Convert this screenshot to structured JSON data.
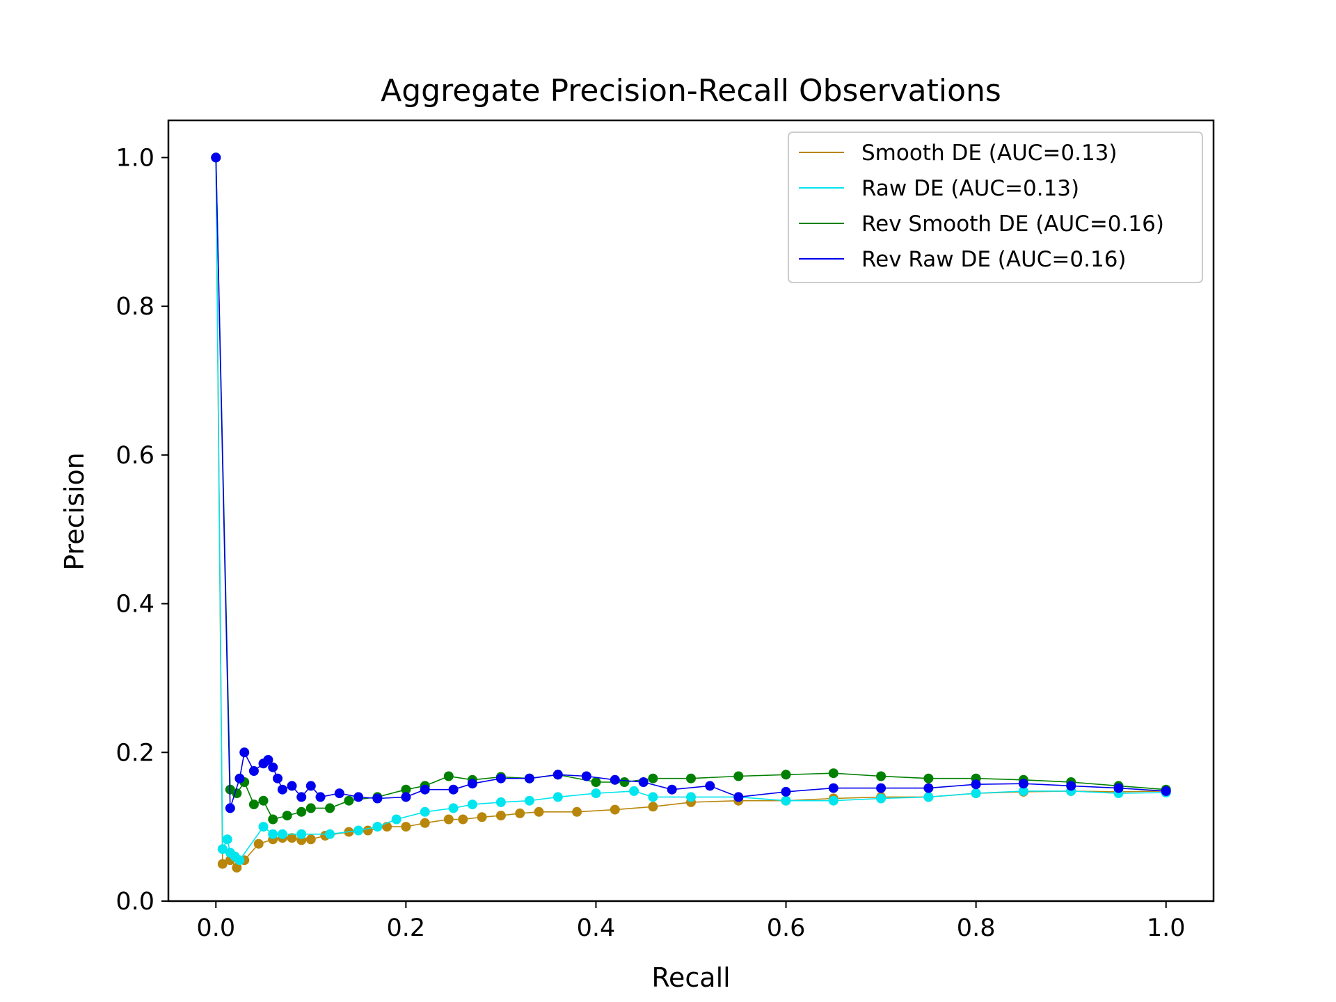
{
  "chart_data": {
    "type": "line",
    "title": "Aggregate Precision-Recall Observations",
    "xlabel": "Recall",
    "ylabel": "Precision",
    "xlim": [
      -0.05,
      1.05
    ],
    "ylim": [
      0.0,
      1.05
    ],
    "xticks": [
      0.0,
      0.2,
      0.4,
      0.6,
      0.8,
      1.0
    ],
    "yticks": [
      0.0,
      0.2,
      0.4,
      0.6,
      0.8,
      1.0
    ],
    "xtick_labels": [
      "0.0",
      "0.2",
      "0.4",
      "0.6",
      "0.8",
      "1.0"
    ],
    "ytick_labels": [
      "0.0",
      "0.2",
      "0.4",
      "0.6",
      "0.8",
      "1.0"
    ],
    "grid": false,
    "legend_position": "top-right",
    "series": [
      {
        "name": "Smooth DE (AUC=0.13)",
        "color": "#b8860b",
        "points": [
          [
            0.0,
            1.0
          ],
          [
            0.007,
            0.05
          ],
          [
            0.015,
            0.055
          ],
          [
            0.022,
            0.045
          ],
          [
            0.03,
            0.055
          ],
          [
            0.045,
            0.077
          ],
          [
            0.06,
            0.083
          ],
          [
            0.07,
            0.085
          ],
          [
            0.08,
            0.085
          ],
          [
            0.09,
            0.082
          ],
          [
            0.1,
            0.083
          ],
          [
            0.115,
            0.088
          ],
          [
            0.14,
            0.093
          ],
          [
            0.16,
            0.095
          ],
          [
            0.18,
            0.1
          ],
          [
            0.2,
            0.1
          ],
          [
            0.22,
            0.105
          ],
          [
            0.245,
            0.11
          ],
          [
            0.26,
            0.11
          ],
          [
            0.28,
            0.113
          ],
          [
            0.3,
            0.115
          ],
          [
            0.32,
            0.118
          ],
          [
            0.34,
            0.12
          ],
          [
            0.38,
            0.12
          ],
          [
            0.42,
            0.123
          ],
          [
            0.46,
            0.127
          ],
          [
            0.5,
            0.133
          ],
          [
            0.55,
            0.135
          ],
          [
            0.6,
            0.135
          ],
          [
            0.65,
            0.138
          ],
          [
            0.7,
            0.14
          ],
          [
            0.75,
            0.14
          ],
          [
            0.8,
            0.145
          ],
          [
            0.85,
            0.147
          ],
          [
            0.9,
            0.148
          ],
          [
            0.95,
            0.147
          ],
          [
            1.0,
            0.148
          ]
        ]
      },
      {
        "name": "Raw DE (AUC=0.13)",
        "color": "#00e5ee",
        "points": [
          [
            0.0,
            1.0
          ],
          [
            0.007,
            0.07
          ],
          [
            0.012,
            0.083
          ],
          [
            0.015,
            0.065
          ],
          [
            0.02,
            0.06
          ],
          [
            0.025,
            0.055
          ],
          [
            0.05,
            0.1
          ],
          [
            0.06,
            0.09
          ],
          [
            0.07,
            0.09
          ],
          [
            0.09,
            0.09
          ],
          [
            0.12,
            0.09
          ],
          [
            0.15,
            0.095
          ],
          [
            0.17,
            0.1
          ],
          [
            0.19,
            0.11
          ],
          [
            0.22,
            0.12
          ],
          [
            0.25,
            0.125
          ],
          [
            0.27,
            0.13
          ],
          [
            0.3,
            0.133
          ],
          [
            0.33,
            0.135
          ],
          [
            0.36,
            0.14
          ],
          [
            0.4,
            0.145
          ],
          [
            0.44,
            0.148
          ],
          [
            0.46,
            0.14
          ],
          [
            0.5,
            0.14
          ],
          [
            0.55,
            0.14
          ],
          [
            0.6,
            0.135
          ],
          [
            0.65,
            0.135
          ],
          [
            0.7,
            0.138
          ],
          [
            0.75,
            0.14
          ],
          [
            0.8,
            0.145
          ],
          [
            0.85,
            0.148
          ],
          [
            0.9,
            0.148
          ],
          [
            0.95,
            0.145
          ],
          [
            1.0,
            0.146
          ]
        ]
      },
      {
        "name": "Rev Smooth DE (AUC=0.16)",
        "color": "#008000",
        "points": [
          [
            0.0,
            1.0
          ],
          [
            0.015,
            0.15
          ],
          [
            0.022,
            0.145
          ],
          [
            0.03,
            0.16
          ],
          [
            0.04,
            0.13
          ],
          [
            0.05,
            0.135
          ],
          [
            0.06,
            0.11
          ],
          [
            0.075,
            0.115
          ],
          [
            0.09,
            0.12
          ],
          [
            0.1,
            0.125
          ],
          [
            0.12,
            0.125
          ],
          [
            0.14,
            0.135
          ],
          [
            0.17,
            0.14
          ],
          [
            0.2,
            0.15
          ],
          [
            0.22,
            0.155
          ],
          [
            0.245,
            0.168
          ],
          [
            0.27,
            0.163
          ],
          [
            0.3,
            0.167
          ],
          [
            0.33,
            0.165
          ],
          [
            0.36,
            0.17
          ],
          [
            0.4,
            0.16
          ],
          [
            0.43,
            0.16
          ],
          [
            0.46,
            0.165
          ],
          [
            0.5,
            0.165
          ],
          [
            0.55,
            0.168
          ],
          [
            0.6,
            0.17
          ],
          [
            0.65,
            0.172
          ],
          [
            0.7,
            0.168
          ],
          [
            0.75,
            0.165
          ],
          [
            0.8,
            0.165
          ],
          [
            0.85,
            0.163
          ],
          [
            0.9,
            0.16
          ],
          [
            0.95,
            0.155
          ],
          [
            1.0,
            0.15
          ]
        ]
      },
      {
        "name": "Rev Raw DE (AUC=0.16)",
        "color": "#0000ee",
        "points": [
          [
            0.0,
            1.0
          ],
          [
            0.015,
            0.125
          ],
          [
            0.025,
            0.165
          ],
          [
            0.03,
            0.2
          ],
          [
            0.04,
            0.175
          ],
          [
            0.05,
            0.185
          ],
          [
            0.055,
            0.19
          ],
          [
            0.06,
            0.18
          ],
          [
            0.065,
            0.165
          ],
          [
            0.07,
            0.15
          ],
          [
            0.08,
            0.155
          ],
          [
            0.09,
            0.14
          ],
          [
            0.1,
            0.155
          ],
          [
            0.11,
            0.14
          ],
          [
            0.13,
            0.145
          ],
          [
            0.15,
            0.14
          ],
          [
            0.17,
            0.138
          ],
          [
            0.2,
            0.14
          ],
          [
            0.22,
            0.15
          ],
          [
            0.25,
            0.15
          ],
          [
            0.27,
            0.158
          ],
          [
            0.3,
            0.165
          ],
          [
            0.33,
            0.165
          ],
          [
            0.36,
            0.17
          ],
          [
            0.39,
            0.168
          ],
          [
            0.42,
            0.163
          ],
          [
            0.45,
            0.16
          ],
          [
            0.48,
            0.15
          ],
          [
            0.52,
            0.155
          ],
          [
            0.55,
            0.14
          ],
          [
            0.6,
            0.147
          ],
          [
            0.65,
            0.152
          ],
          [
            0.7,
            0.152
          ],
          [
            0.75,
            0.152
          ],
          [
            0.8,
            0.157
          ],
          [
            0.85,
            0.158
          ],
          [
            0.9,
            0.155
          ],
          [
            0.95,
            0.152
          ],
          [
            1.0,
            0.148
          ]
        ]
      }
    ]
  }
}
